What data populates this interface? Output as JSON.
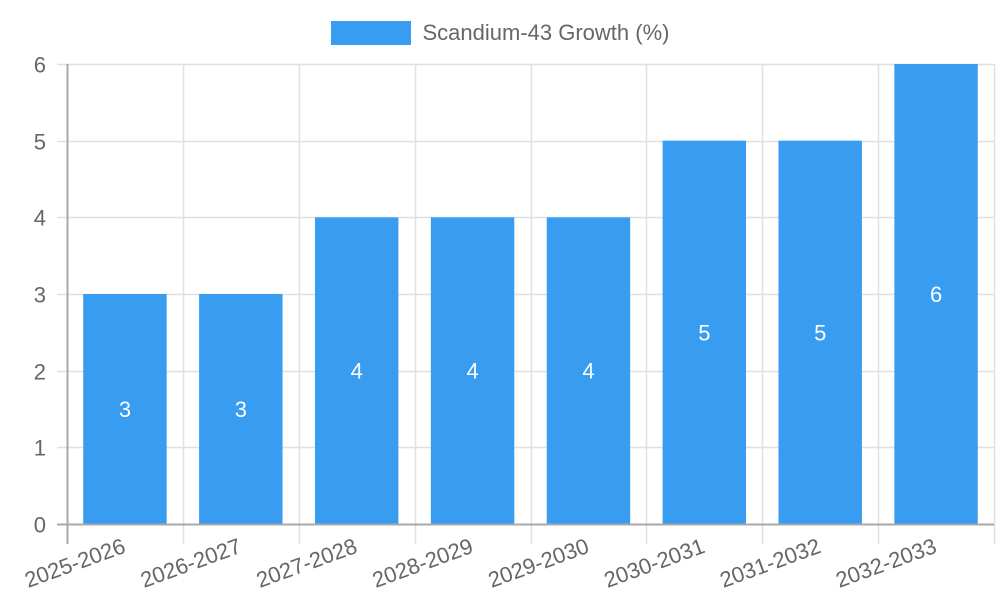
{
  "legend": {
    "label": "Scandium-43 Growth (%)",
    "color": "#389cf0"
  },
  "chart_data": {
    "type": "bar",
    "title": "",
    "categories": [
      "2025-2026",
      "2026-2027",
      "2027-2028",
      "2028-2029",
      "2029-2030",
      "2030-2031",
      "2031-2032",
      "2032-2033"
    ],
    "series": [
      {
        "name": "Scandium-43 Growth (%)",
        "values": [
          3,
          3,
          4,
          4,
          4,
          5,
          5,
          6
        ],
        "color": "#389cf0"
      }
    ],
    "values": [
      3,
      3,
      4,
      4,
      4,
      5,
      5,
      6
    ],
    "data_labels": [
      "3",
      "3",
      "4",
      "4",
      "4",
      "5",
      "5",
      "6"
    ],
    "xlabel": "",
    "ylabel": "",
    "ylim": [
      0,
      6
    ],
    "yticks": [
      "0",
      "1",
      "2",
      "3",
      "4",
      "5",
      "6"
    ],
    "grid": true,
    "legend_position": "top",
    "x_tick_rotation": -20
  },
  "colors": {
    "bar": "#389cf0",
    "grid": "#e0e0e0",
    "axis": "#a8a8a8",
    "tick_text": "#666666",
    "data_label": "#ffffff"
  }
}
